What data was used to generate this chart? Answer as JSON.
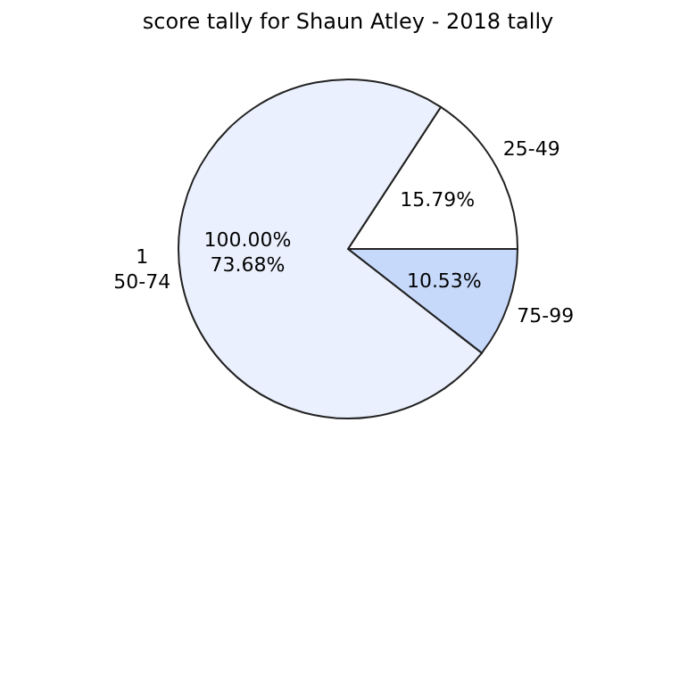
{
  "chart_data": {
    "type": "pie",
    "title": "score tally for Shaun Atley - 2018 tally",
    "categories": [
      "25-49",
      "75-99",
      "50-74"
    ],
    "values": [
      15.79,
      10.53,
      73.68
    ],
    "colors": [
      "#ffffff",
      "#c6d9fb",
      "#eaf0fd"
    ],
    "value_labels": [
      "15.79%",
      "10.53%",
      "73.68%"
    ],
    "annotations": [
      "1",
      "100.00%"
    ]
  }
}
